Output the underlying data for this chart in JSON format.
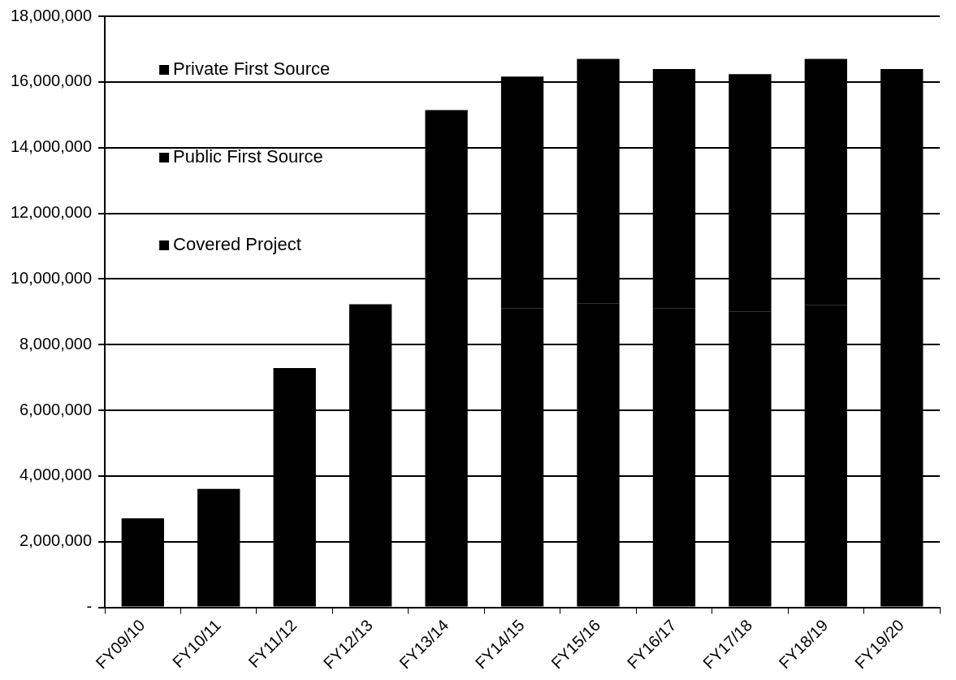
{
  "chart_data": {
    "type": "bar",
    "stacked": true,
    "categories": [
      "FY09/10",
      "FY10/11",
      "FY11/12",
      "FY12/13",
      "FY13/14",
      "FY14/15",
      "FY15/16",
      "FY16/17",
      "FY17/18",
      "FY18/19",
      "FY19/20"
    ],
    "series": [
      {
        "name": "Covered Project",
        "color": "#000000",
        "values": [
          2710000,
          3610000,
          7290000,
          9230000,
          8400000,
          9100000,
          9260000,
          9100000,
          9000000,
          9200000,
          16390000
        ]
      },
      {
        "name": "Public First Source",
        "color": "#000000",
        "values": [
          null,
          null,
          null,
          null,
          6740000,
          7060000,
          7440000,
          7290000,
          7240000,
          7500000,
          null
        ]
      },
      {
        "name": "Private First Source",
        "color": "#000000",
        "values": [
          null,
          null,
          null,
          null,
          null,
          null,
          null,
          null,
          null,
          null,
          null
        ]
      }
    ],
    "ylim": [
      0,
      18000000
    ],
    "yticks": [
      {
        "value": 0,
        "label": "-"
      },
      {
        "value": 2000000,
        "label": "2,000,000"
      },
      {
        "value": 4000000,
        "label": "4,000,000"
      },
      {
        "value": 6000000,
        "label": "6,000,000"
      },
      {
        "value": 8000000,
        "label": "8,000,000"
      },
      {
        "value": 10000000,
        "label": "10,000,000"
      },
      {
        "value": 12000000,
        "label": "12,000,000"
      },
      {
        "value": 14000000,
        "label": "14,000,000"
      },
      {
        "value": 16000000,
        "label": "16,000,000"
      },
      {
        "value": 18000000,
        "label": "18,000,000"
      }
    ],
    "grid": "y",
    "legend": "top left"
  }
}
